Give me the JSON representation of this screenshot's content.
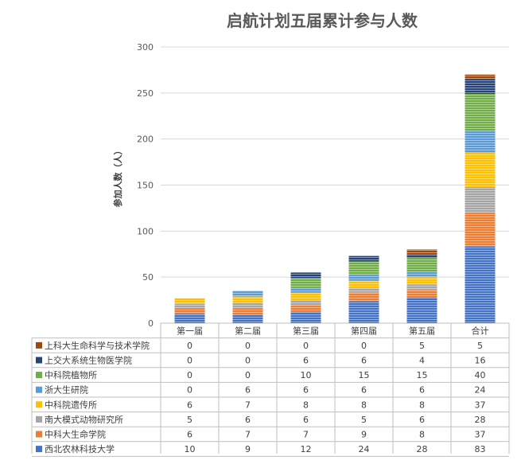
{
  "chart_data": {
    "type": "bar",
    "stacked": true,
    "title": "启航计划五届累计参与人数",
    "ylabel": "参加人数（人）",
    "xlabel": "",
    "ylim": [
      0,
      300
    ],
    "yticks": [
      0,
      50,
      100,
      150,
      200,
      250,
      300
    ],
    "grid": true,
    "legend": "table-left",
    "categories": [
      "第一届",
      "第二届",
      "第三届",
      "第四届",
      "第五届",
      "合计"
    ],
    "series": [
      {
        "name": "西北农林科技大学",
        "color": "#4472c4",
        "values": [
          10,
          9,
          12,
          24,
          28,
          83
        ]
      },
      {
        "name": "中科大生命学院",
        "color": "#ed7d31",
        "values": [
          6,
          7,
          7,
          9,
          8,
          37
        ]
      },
      {
        "name": "南大模式动物研究所",
        "color": "#a5a5a5",
        "values": [
          5,
          6,
          6,
          5,
          6,
          28
        ]
      },
      {
        "name": "中科院遗传所",
        "color": "#ffc000",
        "values": [
          6,
          7,
          8,
          8,
          8,
          37
        ]
      },
      {
        "name": "浙大生研院",
        "color": "#5b9bd5",
        "values": [
          0,
          6,
          6,
          6,
          6,
          24
        ]
      },
      {
        "name": "中科院植物所",
        "color": "#70ad47",
        "values": [
          0,
          0,
          10,
          15,
          15,
          40
        ]
      },
      {
        "name": "上交大系统生物医学院",
        "color": "#264478",
        "values": [
          0,
          0,
          6,
          6,
          4,
          16
        ]
      },
      {
        "name": "上科大生命科学与技术学院",
        "color": "#9e480e",
        "values": [
          0,
          0,
          0,
          0,
          5,
          5
        ]
      }
    ]
  }
}
